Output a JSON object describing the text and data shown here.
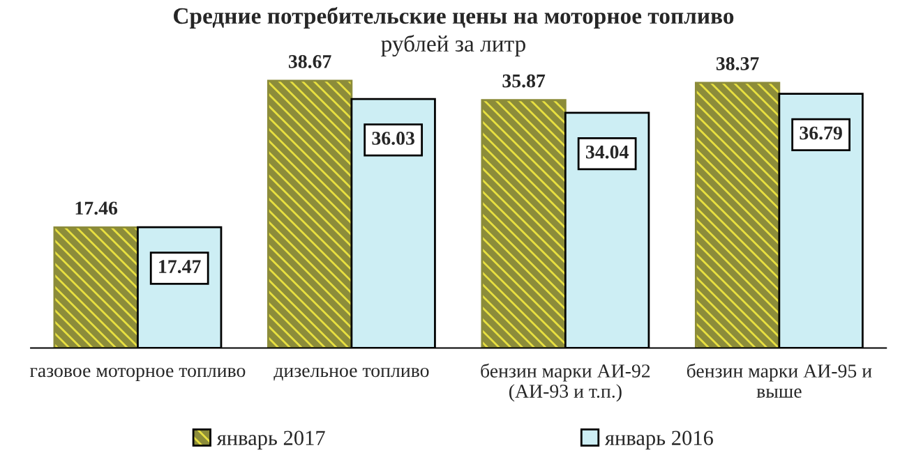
{
  "chart_data": {
    "type": "bar",
    "title": "Средние потребительские цены на моторное топливо",
    "subtitle": "рублей за литр",
    "categories": [
      "газовое моторное топливо",
      "дизельное топливо",
      "бензин марки АИ-92\n(АИ-93 и т.п.)",
      "бензин марки АИ-95 и\nвыше"
    ],
    "series": [
      {
        "name": "январь 2017",
        "color": "#8c8c3a",
        "values": [
          17.46,
          38.67,
          35.87,
          38.37
        ]
      },
      {
        "name": "январь 2016",
        "color": "#cdeef4",
        "values": [
          17.47,
          36.03,
          34.04,
          36.79
        ]
      }
    ],
    "data_labels": true,
    "legend": "bottom",
    "grid": false
  }
}
